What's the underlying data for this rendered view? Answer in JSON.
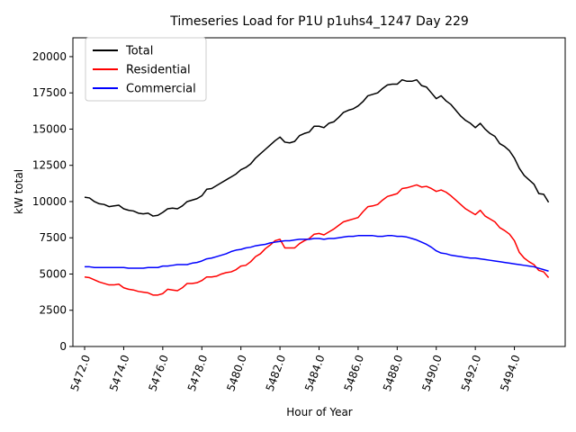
{
  "chart_data": {
    "type": "line",
    "title": "Timeseries Load for P1U p1uhs4_1247  Day 229",
    "xlabel": "Hour of Year",
    "ylabel": "kW total",
    "xlim": [
      5471.4,
      5496.6
    ],
    "ylim": [
      0,
      21300
    ],
    "xticks": [
      5472,
      5474,
      5476,
      5478,
      5480,
      5482,
      5484,
      5486,
      5488,
      5490,
      5492,
      5494
    ],
    "xtick_labels": [
      "5472.0",
      "5474.0",
      "5476.0",
      "5478.0",
      "5480.0",
      "5482.0",
      "5484.0",
      "5486.0",
      "5488.0",
      "5490.0",
      "5492.0",
      "5494.0"
    ],
    "yticks": [
      0,
      2500,
      5000,
      7500,
      10000,
      12500,
      15000,
      17500,
      20000
    ],
    "ytick_labels": [
      "0",
      "2500",
      "5000",
      "7500",
      "10000",
      "12500",
      "15000",
      "17500",
      "20000"
    ],
    "grid": false,
    "legend_position": "top-left",
    "x": {
      "start": 5472,
      "step": 0.25,
      "count": 96
    },
    "series": [
      {
        "name": "Total",
        "color": "#000000",
        "values": [
          10300,
          10250,
          10000,
          9850,
          9800,
          9650,
          9700,
          9750,
          9500,
          9400,
          9350,
          9200,
          9150,
          9200,
          9000,
          9050,
          9250,
          9500,
          9550,
          9500,
          9700,
          10000,
          10100,
          10200,
          10400,
          10850,
          10900,
          11100,
          11300,
          11500,
          11700,
          11900,
          12200,
          12350,
          12600,
          13000,
          13300,
          13600,
          13900,
          14200,
          14450,
          14100,
          14050,
          14150,
          14550,
          14700,
          14800,
          15200,
          15200,
          15100,
          15400,
          15500,
          15800,
          16150,
          16300,
          16400,
          16600,
          16900,
          17300,
          17400,
          17500,
          17800,
          18050,
          18100,
          18100,
          18400,
          18300,
          18300,
          18400,
          18000,
          17900,
          17500,
          17100,
          17300,
          16950,
          16700,
          16300,
          15900,
          15600,
          15400,
          15100,
          15400,
          15000,
          14700,
          14500,
          14000,
          13800,
          13500,
          13000,
          12300,
          11800,
          11500,
          11200,
          10550,
          10500,
          9950
        ]
      },
      {
        "name": "Residential",
        "color": "#ff0000",
        "values": [
          4800,
          4750,
          4600,
          4450,
          4350,
          4250,
          4250,
          4300,
          4050,
          3950,
          3900,
          3800,
          3750,
          3700,
          3550,
          3550,
          3650,
          3950,
          3900,
          3850,
          4050,
          4350,
          4350,
          4400,
          4550,
          4800,
          4800,
          4850,
          5000,
          5100,
          5150,
          5300,
          5550,
          5600,
          5850,
          6200,
          6400,
          6750,
          7000,
          7300,
          7400,
          6800,
          6800,
          6800,
          7100,
          7300,
          7450,
          7750,
          7800,
          7700,
          7900,
          8100,
          8350,
          8600,
          8700,
          8800,
          8900,
          9300,
          9650,
          9700,
          9800,
          10100,
          10350,
          10450,
          10550,
          10900,
          10950,
          11050,
          11150,
          11000,
          11050,
          10900,
          10700,
          10800,
          10650,
          10400,
          10100,
          9800,
          9500,
          9300,
          9100,
          9400,
          9000,
          8800,
          8600,
          8200,
          8000,
          7750,
          7300,
          6500,
          6100,
          5850,
          5650,
          5250,
          5150,
          4750
        ]
      },
      {
        "name": "Commercial",
        "color": "#0000ff",
        "values": [
          5500,
          5500,
          5450,
          5450,
          5450,
          5450,
          5450,
          5450,
          5450,
          5400,
          5400,
          5400,
          5400,
          5450,
          5450,
          5450,
          5550,
          5550,
          5600,
          5650,
          5650,
          5650,
          5750,
          5800,
          5900,
          6050,
          6100,
          6200,
          6300,
          6400,
          6550,
          6650,
          6700,
          6800,
          6850,
          6950,
          7000,
          7050,
          7150,
          7200,
          7250,
          7300,
          7300,
          7350,
          7400,
          7400,
          7400,
          7450,
          7450,
          7400,
          7450,
          7450,
          7500,
          7550,
          7600,
          7600,
          7650,
          7650,
          7650,
          7650,
          7600,
          7600,
          7650,
          7650,
          7600,
          7600,
          7550,
          7450,
          7350,
          7200,
          7050,
          6850,
          6600,
          6450,
          6400,
          6300,
          6250,
          6200,
          6150,
          6100,
          6100,
          6050,
          6000,
          5950,
          5900,
          5850,
          5800,
          5750,
          5700,
          5650,
          5600,
          5550,
          5500,
          5400,
          5300,
          5200
        ]
      }
    ]
  }
}
